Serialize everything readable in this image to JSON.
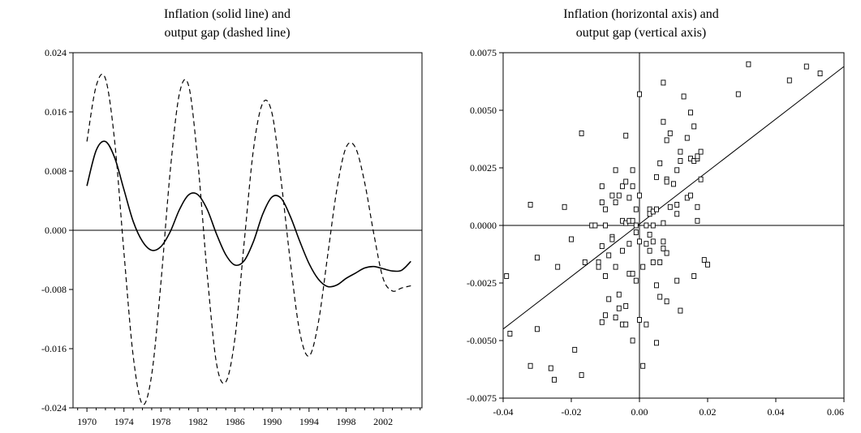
{
  "chart_data": [
    {
      "type": "line",
      "title_lines": [
        "Inflation (solid line) and",
        "output gap (dashed line)"
      ],
      "xlim": [
        1968.5,
        2006.2
      ],
      "ylim": [
        -0.024,
        0.024
      ],
      "y_ticks": [
        0.024,
        0.016,
        0.008,
        0.0,
        -0.008,
        -0.016,
        -0.024
      ],
      "y_tick_labels": [
        "0.024",
        "0.016",
        "0.008",
        "0.000",
        "-0.008",
        "-0.016",
        "-0.024"
      ],
      "x_ticks": [
        1970,
        1974,
        1978,
        1982,
        1986,
        1990,
        1994,
        1998,
        2002
      ],
      "x_tick_labels": [
        "1970",
        "1974",
        "1978",
        "1982",
        "1986",
        "1990",
        "1994",
        "1998",
        "2002"
      ],
      "zero_line": true,
      "series": [
        {
          "name": "Inflation",
          "style": "solid",
          "x": [
            1970,
            1971,
            1972,
            1973,
            1974,
            1975,
            1976,
            1977,
            1978,
            1979,
            1980,
            1981,
            1982,
            1983,
            1984,
            1985,
            1986,
            1987,
            1988,
            1989,
            1990,
            1991,
            1992,
            1993,
            1994,
            1995,
            1996,
            1997,
            1998,
            1999,
            2000,
            2001,
            2002,
            2003,
            2004,
            2005
          ],
          "y": [
            0.006,
            0.0108,
            0.012,
            0.0098,
            0.0055,
            0.0012,
            -0.0015,
            -0.0027,
            -0.0022,
            -0.0002,
            0.0028,
            0.0048,
            0.0048,
            0.0028,
            -0.0005,
            -0.0033,
            -0.0047,
            -0.0041,
            -0.0015,
            0.0022,
            0.0045,
            0.0043,
            0.0018,
            -0.0015,
            -0.0045,
            -0.0066,
            -0.0076,
            -0.0074,
            -0.0065,
            -0.0058,
            -0.0051,
            -0.0049,
            -0.0052,
            -0.0055,
            -0.0054,
            -0.0042
          ]
        },
        {
          "name": "Output gap",
          "style": "dashed",
          "x": [
            1970,
            1971,
            1972,
            1973,
            1974,
            1975,
            1976,
            1977,
            1978,
            1979,
            1980,
            1981,
            1982,
            1983,
            1984,
            1985,
            1986,
            1987,
            1988,
            1989,
            1990,
            1991,
            1992,
            1993,
            1994,
            1995,
            1996,
            1997,
            1998,
            1999,
            2000,
            2001,
            2002,
            2003,
            2004,
            2005
          ],
          "y": [
            0.012,
            0.0195,
            0.0205,
            0.012,
            -0.003,
            -0.017,
            -0.0235,
            -0.0195,
            -0.007,
            0.008,
            0.0185,
            0.0195,
            0.009,
            -0.006,
            -0.018,
            -0.0205,
            -0.0145,
            -0.0015,
            0.011,
            0.0172,
            0.0158,
            0.0065,
            -0.0045,
            -0.0138,
            -0.017,
            -0.0125,
            -0.0035,
            0.0055,
            0.0112,
            0.0112,
            0.0065,
            -0.0005,
            -0.0065,
            -0.0082,
            -0.0078,
            -0.0075
          ]
        }
      ]
    },
    {
      "type": "scatter",
      "title_lines": [
        "Inflation (horizontal axis) and",
        "output gap (vertical axis)"
      ],
      "xlim": [
        -0.04,
        0.06
      ],
      "ylim": [
        -0.0075,
        0.0075
      ],
      "x_ticks": [
        -0.04,
        -0.02,
        0.0,
        0.02,
        0.04,
        0.06
      ],
      "x_tick_labels": [
        "-0.04",
        "-0.02",
        "0.00",
        "0.02",
        "0.04",
        "0.06"
      ],
      "y_ticks": [
        0.0075,
        0.005,
        0.0025,
        0.0,
        -0.0025,
        -0.005,
        -0.0075
      ],
      "y_tick_labels": [
        "0.0075",
        "0.0050",
        "0.0025",
        "0.0000",
        "-0.0025",
        "-0.0050",
        "-0.0075"
      ],
      "zero_lines": true,
      "fit_line": {
        "x": [
          -0.04,
          0.06
        ],
        "y": [
          -0.0045,
          0.0069
        ]
      },
      "points": [
        [
          -0.039,
          -0.0022
        ],
        [
          -0.038,
          -0.0047
        ],
        [
          -0.032,
          0.0009
        ],
        [
          -0.032,
          -0.0061
        ],
        [
          -0.03,
          -0.0014
        ],
        [
          -0.03,
          -0.0045
        ],
        [
          -0.026,
          -0.0062
        ],
        [
          -0.025,
          -0.0067
        ],
        [
          -0.024,
          -0.0018
        ],
        [
          -0.022,
          0.0008
        ],
        [
          -0.02,
          -0.0006
        ],
        [
          -0.019,
          -0.0054
        ],
        [
          -0.017,
          0.004
        ],
        [
          -0.017,
          -0.0065
        ],
        [
          -0.016,
          -0.0016
        ],
        [
          -0.014,
          0.0
        ],
        [
          -0.013,
          0.0
        ],
        [
          -0.012,
          -0.0016
        ],
        [
          -0.012,
          -0.0018
        ],
        [
          -0.011,
          0.001
        ],
        [
          -0.011,
          -0.0009
        ],
        [
          -0.011,
          0.0017
        ],
        [
          -0.011,
          -0.0042
        ],
        [
          -0.01,
          0.0007
        ],
        [
          -0.01,
          -0.0039
        ],
        [
          -0.01,
          -0.0022
        ],
        [
          -0.01,
          0.0
        ],
        [
          -0.009,
          -0.0032
        ],
        [
          -0.009,
          -0.0013
        ],
        [
          -0.008,
          0.0013
        ],
        [
          -0.008,
          -0.0005
        ],
        [
          -0.008,
          -0.0006
        ],
        [
          -0.007,
          0.0024
        ],
        [
          -0.007,
          -0.004
        ],
        [
          -0.007,
          0.001
        ],
        [
          -0.007,
          -0.0018
        ],
        [
          -0.006,
          -0.003
        ],
        [
          -0.006,
          -0.0036
        ],
        [
          -0.006,
          0.0013
        ],
        [
          -0.005,
          0.0002
        ],
        [
          -0.005,
          0.0017
        ],
        [
          -0.005,
          -0.0011
        ],
        [
          -0.005,
          -0.0043
        ],
        [
          -0.004,
          0.0019
        ],
        [
          -0.004,
          -0.0035
        ],
        [
          -0.004,
          0.0001
        ],
        [
          -0.004,
          -0.0043
        ],
        [
          -0.004,
          0.0039
        ],
        [
          -0.003,
          0.0012
        ],
        [
          -0.003,
          0.0002
        ],
        [
          -0.003,
          -0.0008
        ],
        [
          -0.003,
          -0.0021
        ],
        [
          -0.002,
          0.0017
        ],
        [
          -0.002,
          0.0002
        ],
        [
          -0.002,
          -0.005
        ],
        [
          -0.002,
          -0.0021
        ],
        [
          -0.002,
          0.0024
        ],
        [
          -0.001,
          -0.0024
        ],
        [
          -0.001,
          0.0
        ],
        [
          -0.001,
          -0.0003
        ],
        [
          -0.001,
          0.0007
        ],
        [
          0.0,
          0.0057
        ],
        [
          0.0,
          -0.0041
        ],
        [
          0.0,
          0.0013
        ],
        [
          0.0,
          -0.0007
        ],
        [
          0.001,
          -0.0061
        ],
        [
          0.001,
          -0.0018
        ],
        [
          0.002,
          0.0
        ],
        [
          0.002,
          -0.0008
        ],
        [
          0.002,
          -0.0043
        ],
        [
          0.003,
          0.0007
        ],
        [
          0.003,
          -0.0004
        ],
        [
          0.003,
          0.0005
        ],
        [
          0.003,
          -0.0011
        ],
        [
          0.004,
          0.0006
        ],
        [
          0.004,
          -0.0016
        ],
        [
          0.004,
          0.0
        ],
        [
          0.004,
          -0.0007
        ],
        [
          0.005,
          0.0021
        ],
        [
          0.005,
          -0.0026
        ],
        [
          0.005,
          0.0007
        ],
        [
          0.005,
          -0.0051
        ],
        [
          0.006,
          0.0027
        ],
        [
          0.006,
          -0.0031
        ],
        [
          0.006,
          -0.0016
        ],
        [
          0.007,
          0.0045
        ],
        [
          0.007,
          0.0062
        ],
        [
          0.007,
          0.0001
        ],
        [
          0.007,
          -0.001
        ],
        [
          0.007,
          -0.0007
        ],
        [
          0.008,
          0.0037
        ],
        [
          0.008,
          0.002
        ],
        [
          0.008,
          0.0019
        ],
        [
          0.008,
          -0.0012
        ],
        [
          0.008,
          -0.0033
        ],
        [
          0.009,
          0.0008
        ],
        [
          0.009,
          0.004
        ],
        [
          0.01,
          0.0018
        ],
        [
          0.011,
          0.0024
        ],
        [
          0.011,
          0.0009
        ],
        [
          0.011,
          0.0005
        ],
        [
          0.011,
          -0.0024
        ],
        [
          0.012,
          0.0032
        ],
        [
          0.012,
          0.0028
        ],
        [
          0.012,
          -0.0037
        ],
        [
          0.013,
          0.0056
        ],
        [
          0.014,
          0.0038
        ],
        [
          0.014,
          0.0012
        ],
        [
          0.015,
          0.0049
        ],
        [
          0.015,
          0.0013
        ],
        [
          0.015,
          0.0029
        ],
        [
          0.016,
          -0.0022
        ],
        [
          0.016,
          0.0043
        ],
        [
          0.016,
          0.0028
        ],
        [
          0.017,
          0.0029
        ],
        [
          0.017,
          0.0008
        ],
        [
          0.017,
          0.003
        ],
        [
          0.017,
          0.0002
        ],
        [
          0.018,
          0.0032
        ],
        [
          0.018,
          0.002
        ],
        [
          0.019,
          -0.0015
        ],
        [
          0.02,
          -0.0017
        ],
        [
          0.029,
          0.0057
        ],
        [
          0.032,
          0.007
        ],
        [
          0.044,
          0.0063
        ],
        [
          0.049,
          0.0069
        ],
        [
          0.053,
          0.0066
        ]
      ]
    }
  ]
}
